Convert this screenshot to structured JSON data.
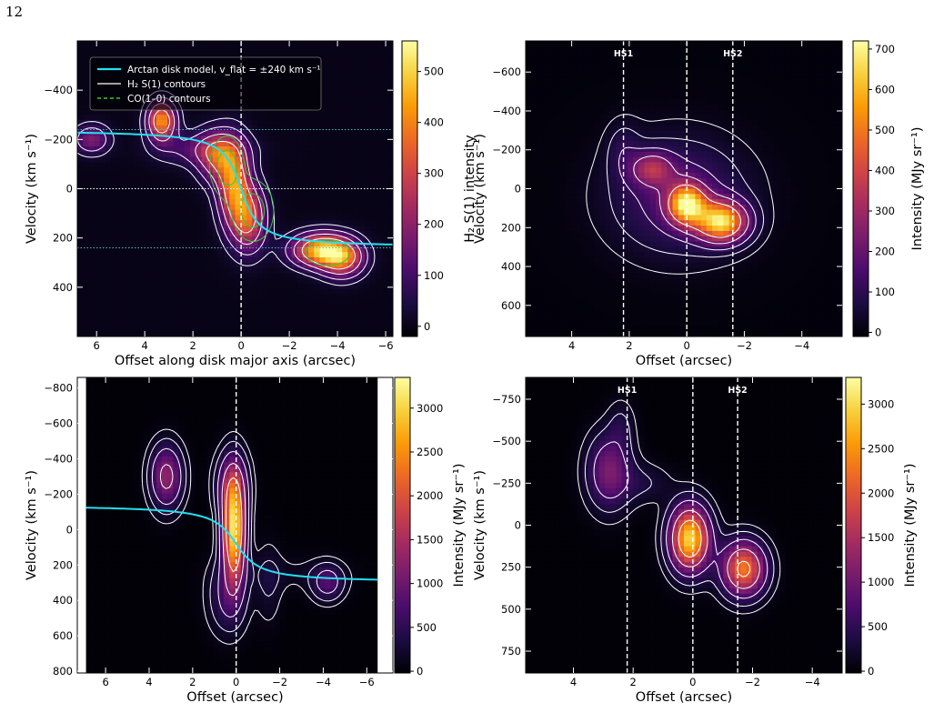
{
  "page_number": "12",
  "colors": {
    "colormap": [
      "#000004",
      "#1b0c41",
      "#4a0c6b",
      "#781c6d",
      "#a52c60",
      "#cf4446",
      "#ed6925",
      "#fb9b06",
      "#f7d13d",
      "#fcffa4"
    ],
    "model_curve": "#22e0f0",
    "h2_contour": "#ffffff",
    "co_contour": "#33cc33",
    "guide_line": "#ffffff"
  },
  "chart_data": [
    {
      "type": "heatmap",
      "id": "top-left",
      "xlabel": "Offset along disk major axis (arcsec)",
      "ylabel": "Velocity (km s⁻¹)",
      "xlim": [
        6.8,
        -6.3
      ],
      "ylim": [
        -600,
        600
      ],
      "y_inverted": true,
      "xticks": [
        6,
        4,
        2,
        0,
        -2,
        -4,
        -6
      ],
      "yticks": [
        -400,
        -200,
        0,
        200,
        400
      ],
      "colorbar": {
        "label": "H₂ S(1) intensity",
        "range": [
          -20,
          560
        ],
        "ticks": [
          0,
          100,
          200,
          300,
          400,
          500
        ]
      },
      "vertical_lines": [
        {
          "x": 0,
          "label": ""
        }
      ],
      "horizontal_lines": [
        -240,
        0,
        240
      ],
      "legend": {
        "position": "upper-left",
        "entries": [
          {
            "label": "Arctan disk model, v_flat = ±240 km s⁻¹",
            "style": "cyan-solid"
          },
          {
            "label": "H₂ S(1) contours",
            "style": "white-solid"
          },
          {
            "label": "CO(1–0) contours",
            "style": "green-dashed"
          }
        ]
      },
      "model": {
        "v_flat": 240,
        "r_t": 0.55,
        "sign": -1,
        "x_range": [
          6.8,
          -6.3
        ]
      },
      "sources": [
        {
          "x": 3.3,
          "v": -275,
          "sx": 0.4,
          "sv": 55,
          "amp": 420
        },
        {
          "x": 1.0,
          "v": -130,
          "sx": 0.55,
          "sv": 70,
          "amp": 260
        },
        {
          "x": 0.3,
          "v": -20,
          "sx": 0.45,
          "sv": 110,
          "amp": 380
        },
        {
          "x": -0.3,
          "v": 120,
          "sx": 0.5,
          "sv": 90,
          "amp": 330
        },
        {
          "x": -3.3,
          "v": 250,
          "sx": 0.8,
          "sv": 45,
          "amp": 470
        },
        {
          "x": -4.2,
          "v": 285,
          "sx": 0.6,
          "sv": 50,
          "amp": 330
        },
        {
          "x": 6.2,
          "v": -200,
          "sx": 0.5,
          "sv": 40,
          "amp": 180
        },
        {
          "x": 1.6,
          "v": -160,
          "sx": 1.3,
          "sv": 45,
          "amp": 120
        }
      ],
      "contour_levels": [
        35,
        90,
        180,
        300
      ],
      "co_sources": [
        {
          "x": 0.6,
          "v": -90,
          "sx": 0.45,
          "sv": 80,
          "amp": 1.0
        },
        {
          "x": -0.5,
          "v": 90,
          "sx": 0.55,
          "sv": 80,
          "amp": 1.0
        },
        {
          "x": -3.6,
          "v": 260,
          "sx": 0.7,
          "sv": 40,
          "amp": 0.7
        }
      ],
      "co_levels": [
        0.3,
        0.7
      ]
    },
    {
      "type": "heatmap",
      "id": "top-right",
      "xlabel": "Offset (arcsec)",
      "ylabel": "Velocity (km s⁻¹)",
      "xlim": [
        5.6,
        -5.4
      ],
      "ylim": [
        -760,
        760
      ],
      "y_inverted": true,
      "xticks": [
        4,
        2,
        0,
        -2,
        -4
      ],
      "yticks": [
        -600,
        -400,
        -200,
        0,
        200,
        400,
        600
      ],
      "colorbar": {
        "label": "Intensity (MJy sr⁻¹)",
        "range": [
          -10,
          720
        ],
        "ticks": [
          0,
          100,
          200,
          300,
          400,
          500,
          600,
          700
        ]
      },
      "vertical_lines": [
        {
          "x": 2.2,
          "label": "HS1"
        },
        {
          "x": 0,
          "label": ""
        },
        {
          "x": -1.6,
          "label": "HS2"
        }
      ],
      "horizontal_lines": [],
      "model": null,
      "sources": [
        {
          "x": 0.0,
          "v": 80,
          "sx": 0.45,
          "sv": 70,
          "amp": 600
        },
        {
          "x": -1.2,
          "v": 170,
          "sx": 0.6,
          "sv": 70,
          "amp": 620
        },
        {
          "x": 1.2,
          "v": -100,
          "sx": 0.5,
          "sv": 60,
          "amp": 260
        },
        {
          "x": 0.3,
          "v": 40,
          "sx": 1.6,
          "sv": 200,
          "amp": 160
        },
        {
          "x": 2.2,
          "v": -200,
          "sx": 0.4,
          "sv": 100,
          "amp": 70
        }
      ],
      "contour_levels": [
        22,
        55,
        115,
        220,
        380
      ]
    },
    {
      "type": "heatmap",
      "id": "bottom-left",
      "xlabel": "Offset (arcsec)",
      "ylabel": "Velocity (km s⁻¹)",
      "xlim": [
        7.3,
        -7.2
      ],
      "ylim": [
        -860,
        810
      ],
      "y_inverted": true,
      "xticks": [
        6,
        4,
        2,
        0,
        -2,
        -4,
        -6
      ],
      "yticks": [
        -800,
        -600,
        -400,
        -200,
        0,
        200,
        400,
        600,
        800
      ],
      "colorbar": {
        "label": "Intensity (MJy sr⁻¹)",
        "range": [
          -20,
          3350
        ],
        "ticks": [
          0,
          500,
          1000,
          1500,
          2000,
          2500,
          3000
        ]
      },
      "vertical_lines": [
        {
          "x": 0,
          "label": ""
        }
      ],
      "horizontal_lines": [],
      "model": {
        "v_flat": 220,
        "r_t": 0.8,
        "sign": -1,
        "offset": 80,
        "x_range": [
          6.9,
          -6.5
        ]
      },
      "blank_left": 6.9,
      "blank_right": -6.5,
      "sources": [
        {
          "x": 3.2,
          "v": -300,
          "sx": 0.5,
          "sv": 120,
          "amp": 1300
        },
        {
          "x": 0.1,
          "v": 0,
          "sx": 0.35,
          "sv": 200,
          "amp": 3100
        },
        {
          "x": -4.2,
          "v": 300,
          "sx": 0.5,
          "sv": 70,
          "amp": 750
        },
        {
          "x": 0.2,
          "v": -260,
          "sx": 0.5,
          "sv": 120,
          "amp": 900
        },
        {
          "x": 0.4,
          "v": 380,
          "sx": 0.6,
          "sv": 140,
          "amp": 600
        },
        {
          "x": -1.5,
          "v": 300,
          "sx": 0.4,
          "sv": 160,
          "amp": 260
        },
        {
          "x": -2.5,
          "v": 250,
          "sx": 2.0,
          "sv": 70,
          "amp": 140
        }
      ],
      "contour_levels": [
        110,
        260,
        550,
        1100,
        1900
      ]
    },
    {
      "type": "heatmap",
      "id": "bottom-right",
      "xlabel": "Offset (arcsec)",
      "ylabel": "Velocity (km s⁻¹)",
      "xlim": [
        5.6,
        -5.0
      ],
      "ylim": [
        -880,
        880
      ],
      "y_inverted": true,
      "xticks": [
        4,
        2,
        0,
        -2,
        -4
      ],
      "yticks": [
        -750,
        -500,
        -250,
        0,
        250,
        500,
        750
      ],
      "colorbar": {
        "label": "Intensity (MJy sr⁻¹)",
        "range": [
          -20,
          3300
        ],
        "ticks": [
          0,
          500,
          1000,
          1500,
          2000,
          2500,
          3000
        ]
      },
      "vertical_lines": [
        {
          "x": 2.2,
          "label": "HS1"
        },
        {
          "x": 0,
          "label": ""
        },
        {
          "x": -1.5,
          "label": "HS2"
        }
      ],
      "horizontal_lines": [],
      "model": null,
      "sources": [
        {
          "x": 0.1,
          "v": 80,
          "sx": 0.45,
          "sv": 130,
          "amp": 3000
        },
        {
          "x": -1.7,
          "v": 260,
          "sx": 0.5,
          "sv": 110,
          "amp": 2300
        },
        {
          "x": 2.8,
          "v": -320,
          "sx": 0.5,
          "sv": 150,
          "amp": 1100
        },
        {
          "x": 2.4,
          "v": -600,
          "sx": 0.3,
          "sv": 100,
          "amp": 300
        },
        {
          "x": 1.6,
          "v": -250,
          "sx": 0.6,
          "sv": 80,
          "amp": 300
        }
      ],
      "contour_levels": [
        120,
        300,
        650,
        1300,
        2100
      ]
    }
  ]
}
